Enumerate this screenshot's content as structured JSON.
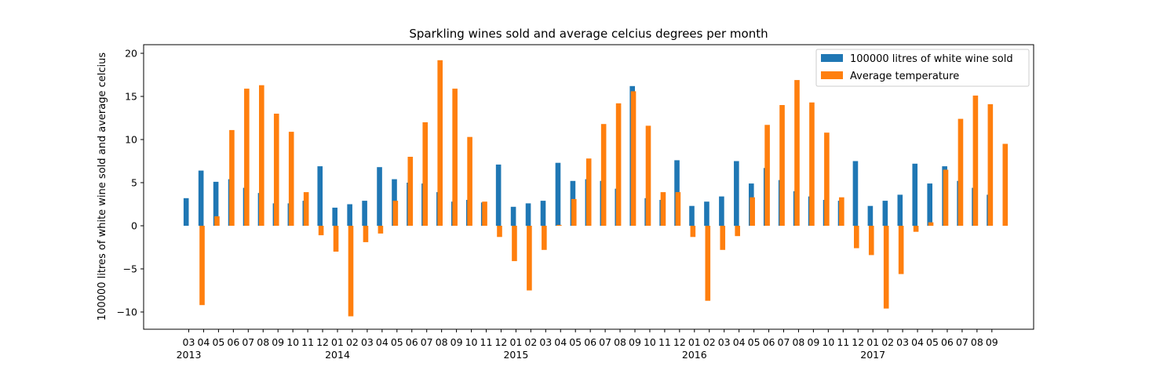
{
  "chart_data": {
    "type": "bar",
    "title": "Sparkling wines sold and average celcius degrees per month",
    "xlabel": "",
    "ylabel": "100000 litres of white wine sold and average celcius",
    "ylim": [
      -12,
      21
    ],
    "yticks": [
      -10,
      -5,
      0,
      5,
      10,
      15,
      20
    ],
    "ytick_labels": [
      "−10",
      "−5",
      "0",
      "5",
      "10",
      "15",
      "20"
    ],
    "grid": false,
    "legend_position": "top-right",
    "categories": [
      "03",
      "04",
      "05",
      "06",
      "07",
      "08",
      "09",
      "10",
      "11",
      "12",
      "01",
      "02",
      "03",
      "04",
      "05",
      "06",
      "07",
      "08",
      "09",
      "10",
      "11",
      "12",
      "01",
      "02",
      "03",
      "04",
      "05",
      "06",
      "07",
      "08",
      "09",
      "10",
      "11",
      "12",
      "01",
      "02",
      "03",
      "04",
      "05",
      "06",
      "07",
      "08",
      "09",
      "10",
      "11",
      "12",
      "01",
      "02",
      "03",
      "04",
      "05",
      "06",
      "07",
      "08",
      "09"
    ],
    "year_labels": [
      {
        "index": 0,
        "label": "2013"
      },
      {
        "index": 10,
        "label": "2014"
      },
      {
        "index": 22,
        "label": "2015"
      },
      {
        "index": 34,
        "label": "2016"
      },
      {
        "index": 46,
        "label": "2017"
      }
    ],
    "series": [
      {
        "name": "100000 litres of white wine sold",
        "color": "#1f77b4",
        "values": [
          3.2,
          6.4,
          5.1,
          5.4,
          4.4,
          3.8,
          2.6,
          2.6,
          2.9,
          6.9,
          2.1,
          2.5,
          2.9,
          6.8,
          5.4,
          5.0,
          4.9,
          3.9,
          2.8,
          3.0,
          2.7,
          7.1,
          2.2,
          2.6,
          2.9,
          7.3,
          5.2,
          5.4,
          5.2,
          4.3,
          16.2,
          3.2,
          3.0,
          7.6,
          2.3,
          2.8,
          3.4,
          7.5,
          4.9,
          6.7,
          5.3,
          4.0,
          3.4,
          3.0,
          2.9,
          7.5,
          2.3,
          2.9,
          3.6,
          7.2,
          4.9,
          6.9,
          5.2,
          4.4,
          3.6
        ]
      },
      {
        "name": "Average temperature",
        "color": "#ff7f0e",
        "values": [
          -9.2,
          1.1,
          11.1,
          15.9,
          16.3,
          13.0,
          10.9,
          3.9,
          -1.1,
          -3.0,
          -10.5,
          -1.9,
          -0.9,
          2.9,
          8.0,
          12.0,
          19.2,
          15.9,
          10.3,
          2.8,
          -1.3,
          -4.1,
          -7.5,
          -2.8,
          0.1,
          3.1,
          7.8,
          11.8,
          14.2,
          15.6,
          11.6,
          3.9,
          3.9,
          -1.3,
          -8.7,
          -2.8,
          -1.2,
          3.3,
          11.7,
          14.0,
          16.9,
          14.3,
          10.8,
          3.3,
          -2.6,
          -3.4,
          -9.6,
          -5.6,
          -0.7,
          0.4,
          6.5,
          12.4,
          15.1,
          14.1,
          9.5
        ]
      }
    ]
  }
}
